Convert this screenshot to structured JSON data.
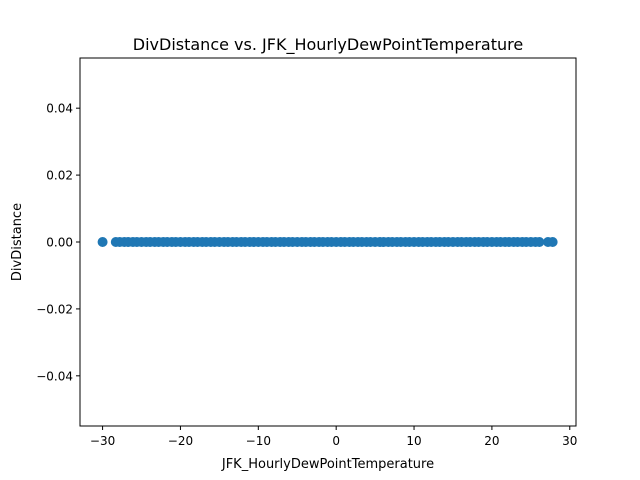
{
  "chart_data": {
    "type": "scatter",
    "title": "DivDistance vs. JFK_HourlyDewPointTemperature",
    "xlabel": "JFK_HourlyDewPointTemperature",
    "ylabel": "DivDistance",
    "xlim": [
      -32.9,
      30.8
    ],
    "ylim": [
      -0.055,
      0.055
    ],
    "xticks": [
      -30,
      -20,
      -10,
      0,
      10,
      20,
      30
    ],
    "xtick_labels": [
      "−30",
      "−20",
      "−10",
      "0",
      "10",
      "20",
      "30"
    ],
    "yticks": [
      -0.04,
      -0.02,
      0.0,
      0.02,
      0.04
    ],
    "ytick_labels": [
      "−0.04",
      "−0.02",
      "0.00",
      "0.02",
      "0.04"
    ],
    "grid": false,
    "legend": false,
    "marker_color": "#1f77b4",
    "x": [
      -30.0,
      -28.3,
      -27.8,
      -27.2,
      -26.7,
      -26.1,
      -25.6,
      -25.0,
      -24.4,
      -23.9,
      -23.3,
      -22.8,
      -22.2,
      -21.7,
      -21.1,
      -20.6,
      -20.0,
      -19.4,
      -18.9,
      -18.3,
      -17.8,
      -17.2,
      -16.7,
      -16.1,
      -15.6,
      -15.0,
      -14.4,
      -13.9,
      -13.3,
      -12.8,
      -12.2,
      -11.7,
      -11.1,
      -10.6,
      -10.0,
      -9.4,
      -8.9,
      -8.3,
      -7.8,
      -7.2,
      -6.7,
      -6.1,
      -5.6,
      -5.0,
      -4.4,
      -3.9,
      -3.3,
      -2.8,
      -2.2,
      -1.7,
      -1.1,
      -0.6,
      0.0,
      0.6,
      1.1,
      1.7,
      2.2,
      2.8,
      3.3,
      3.9,
      4.4,
      5.0,
      5.6,
      6.1,
      6.7,
      7.2,
      7.8,
      8.3,
      8.9,
      9.4,
      10.0,
      10.6,
      11.1,
      11.7,
      12.2,
      12.8,
      13.3,
      13.9,
      14.4,
      15.0,
      15.6,
      16.1,
      16.7,
      17.2,
      17.8,
      18.3,
      18.9,
      19.4,
      20.0,
      20.6,
      21.1,
      21.7,
      22.2,
      22.8,
      23.3,
      23.9,
      24.4,
      25.0,
      25.6,
      26.1,
      27.2,
      27.8
    ],
    "y": [
      0,
      0,
      0,
      0,
      0,
      0,
      0,
      0,
      0,
      0,
      0,
      0,
      0,
      0,
      0,
      0,
      0,
      0,
      0,
      0,
      0,
      0,
      0,
      0,
      0,
      0,
      0,
      0,
      0,
      0,
      0,
      0,
      0,
      0,
      0,
      0,
      0,
      0,
      0,
      0,
      0,
      0,
      0,
      0,
      0,
      0,
      0,
      0,
      0,
      0,
      0,
      0,
      0,
      0,
      0,
      0,
      0,
      0,
      0,
      0,
      0,
      0,
      0,
      0,
      0,
      0,
      0,
      0,
      0,
      0,
      0,
      0,
      0,
      0,
      0,
      0,
      0,
      0,
      0,
      0,
      0,
      0,
      0,
      0,
      0,
      0,
      0,
      0,
      0,
      0,
      0,
      0,
      0,
      0,
      0,
      0,
      0,
      0,
      0,
      0,
      0,
      0
    ]
  }
}
